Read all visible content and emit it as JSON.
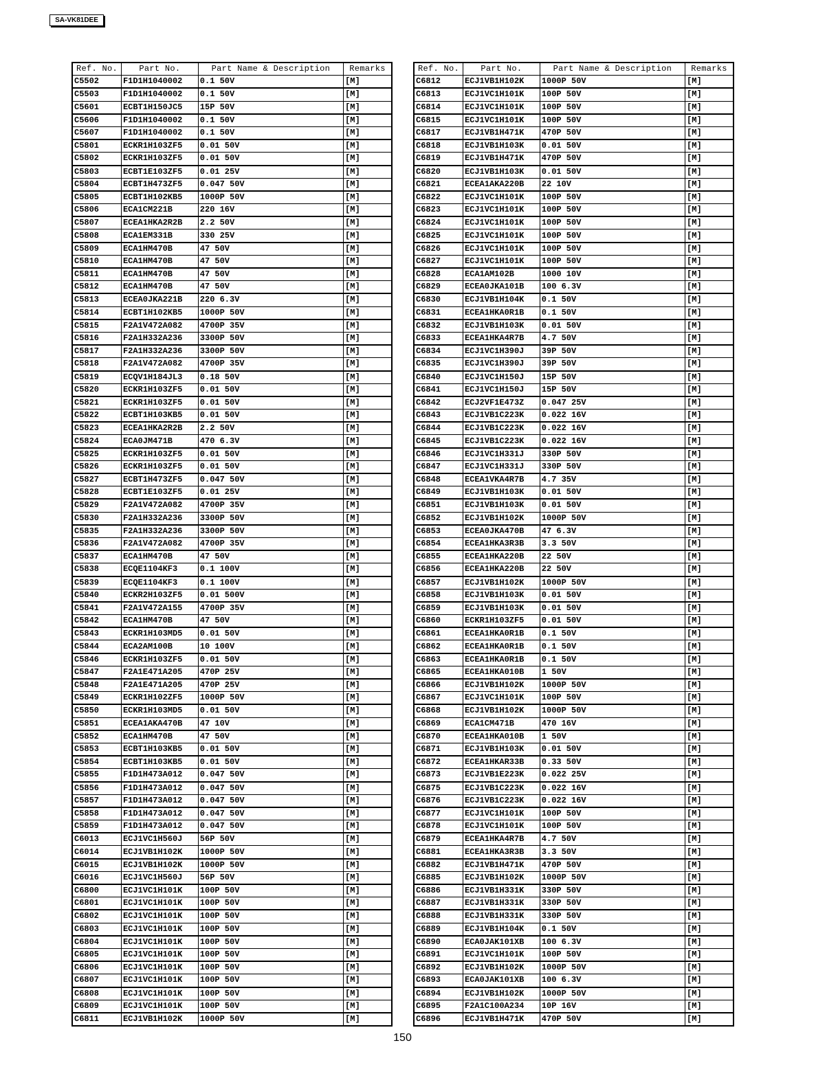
{
  "header": {
    "model": "SA-VK81DEE"
  },
  "columns": [
    "Ref. No.",
    "Part No.",
    "Part Name & Description",
    "Remarks"
  ],
  "left_table": [
    [
      "C5502",
      "F1D1H1040002",
      "0.1 50V",
      "[M]"
    ],
    [
      "C5503",
      "F1D1H1040002",
      "0.1 50V",
      "[M]"
    ],
    [
      "C5601",
      "ECBT1H150JC5",
      "15P 50V",
      "[M]"
    ],
    [
      "C5606",
      "F1D1H1040002",
      "0.1 50V",
      "[M]"
    ],
    [
      "C5607",
      "F1D1H1040002",
      "0.1 50V",
      "[M]"
    ],
    [
      "C5801",
      "ECKR1H103ZF5",
      "0.01 50V",
      "[M]"
    ],
    [
      "C5802",
      "ECKR1H103ZF5",
      "0.01 50V",
      "[M]"
    ],
    [
      "C5803",
      "ECBT1E103ZF5",
      "0.01 25V",
      "[M]"
    ],
    [
      "C5804",
      "ECBT1H473ZF5",
      "0.047 50V",
      "[M]"
    ],
    [
      "C5805",
      "ECBT1H102KB5",
      "1000P 50V",
      "[M]"
    ],
    [
      "C5806",
      "ECA1CM221B",
      "220 16V",
      "[M]"
    ],
    [
      "C5807",
      "ECEA1HKA2R2B",
      "2.2 50V",
      "[M]"
    ],
    [
      "C5808",
      "ECA1EM331B",
      "330 25V",
      "[M]"
    ],
    [
      "C5809",
      "ECA1HM470B",
      "47 50V",
      "[M]"
    ],
    [
      "C5810",
      "ECA1HM470B",
      "47 50V",
      "[M]"
    ],
    [
      "C5811",
      "ECA1HM470B",
      "47 50V",
      "[M]"
    ],
    [
      "C5812",
      "ECA1HM470B",
      "47 50V",
      "[M]"
    ],
    [
      "C5813",
      "ECEA0JKA221B",
      "220 6.3V",
      "[M]"
    ],
    [
      "C5814",
      "ECBT1H102KB5",
      "1000P 50V",
      "[M]"
    ],
    [
      "C5815",
      "F2A1V472A082",
      "4700P 35V",
      "[M]"
    ],
    [
      "C5816",
      "F2A1H332A236",
      "3300P 50V",
      "[M]"
    ],
    [
      "C5817",
      "F2A1H332A236",
      "3300P 50V",
      "[M]"
    ],
    [
      "C5818",
      "F2A1V472A082",
      "4700P 35V",
      "[M]"
    ],
    [
      "C5819",
      "ECQV1H184JL3",
      "0.18 50V",
      "[M]"
    ],
    [
      "C5820",
      "ECKR1H103ZF5",
      "0.01 50V",
      "[M]"
    ],
    [
      "C5821",
      "ECKR1H103ZF5",
      "0.01 50V",
      "[M]"
    ],
    [
      "C5822",
      "ECBT1H103KB5",
      "0.01 50V",
      "[M]"
    ],
    [
      "C5823",
      "ECEA1HKA2R2B",
      "2.2 50V",
      "[M]"
    ],
    [
      "C5824",
      "ECA0JM471B",
      "470 6.3V",
      "[M]"
    ],
    [
      "C5825",
      "ECKR1H103ZF5",
      "0.01 50V",
      "[M]"
    ],
    [
      "C5826",
      "ECKR1H103ZF5",
      "0.01 50V",
      "[M]"
    ],
    [
      "C5827",
      "ECBT1H473ZF5",
      "0.047 50V",
      "[M]"
    ],
    [
      "C5828",
      "ECBT1E103ZF5",
      "0.01 25V",
      "[M]"
    ],
    [
      "C5829",
      "F2A1V472A082",
      "4700P 35V",
      "[M]"
    ],
    [
      "C5830",
      "F2A1H332A236",
      "3300P 50V",
      "[M]"
    ],
    [
      "C5835",
      "F2A1H332A236",
      "3300P 50V",
      "[M]"
    ],
    [
      "C5836",
      "F2A1V472A082",
      "4700P 35V",
      "[M]"
    ],
    [
      "C5837",
      "ECA1HM470B",
      "47 50V",
      "[M]"
    ],
    [
      "C5838",
      "ECQE1104KF3",
      "0.1 100V",
      "[M]"
    ],
    [
      "C5839",
      "ECQE1104KF3",
      "0.1 100V",
      "[M]"
    ],
    [
      "C5840",
      "ECKR2H103ZF5",
      "0.01 500V",
      "[M]"
    ],
    [
      "C5841",
      "F2A1V472A155",
      "4700P 35V",
      "[M]"
    ],
    [
      "C5842",
      "ECA1HM470B",
      "47 50V",
      "[M]"
    ],
    [
      "C5843",
      "ECKR1H103MD5",
      "0.01 50V",
      "[M]"
    ],
    [
      "C5844",
      "ECA2AM100B",
      "10 100V",
      "[M]"
    ],
    [
      "C5846",
      "ECKR1H103ZF5",
      "0.01 50V",
      "[M]"
    ],
    [
      "C5847",
      "F2A1E471A205",
      "470P 25V",
      "[M]"
    ],
    [
      "C5848",
      "F2A1E471A205",
      "470P 25V",
      "[M]"
    ],
    [
      "C5849",
      "ECKR1H102ZF5",
      "1000P 50V",
      "[M]"
    ],
    [
      "C5850",
      "ECKR1H103MD5",
      "0.01 50V",
      "[M]"
    ],
    [
      "C5851",
      "ECEA1AKA470B",
      "47 10V",
      "[M]"
    ],
    [
      "C5852",
      "ECA1HM470B",
      "47 50V",
      "[M]"
    ],
    [
      "C5853",
      "ECBT1H103KB5",
      "0.01 50V",
      "[M]"
    ],
    [
      "C5854",
      "ECBT1H103KB5",
      "0.01 50V",
      "[M]"
    ],
    [
      "C5855",
      "F1D1H473A012",
      "0.047 50V",
      "[M]"
    ],
    [
      "C5856",
      "F1D1H473A012",
      "0.047 50V",
      "[M]"
    ],
    [
      "C5857",
      "F1D1H473A012",
      "0.047 50V",
      "[M]"
    ],
    [
      "C5858",
      "F1D1H473A012",
      "0.047 50V",
      "[M]"
    ],
    [
      "C5859",
      "F1D1H473A012",
      "0.047 50V",
      "[M]"
    ],
    [
      "C6013",
      "ECJ1VC1H560J",
      "56P 50V",
      "[M]"
    ],
    [
      "C6014",
      "ECJ1VB1H102K",
      "1000P 50V",
      "[M]"
    ],
    [
      "C6015",
      "ECJ1VB1H102K",
      "1000P 50V",
      "[M]"
    ],
    [
      "C6016",
      "ECJ1VC1H560J",
      "56P 50V",
      "[M]"
    ],
    [
      "C6800",
      "ECJ1VC1H101K",
      "100P 50V",
      "[M]"
    ],
    [
      "C6801",
      "ECJ1VC1H101K",
      "100P 50V",
      "[M]"
    ],
    [
      "C6802",
      "ECJ1VC1H101K",
      "100P 50V",
      "[M]"
    ],
    [
      "C6803",
      "ECJ1VC1H101K",
      "100P 50V",
      "[M]"
    ],
    [
      "C6804",
      "ECJ1VC1H101K",
      "100P 50V",
      "[M]"
    ],
    [
      "C6805",
      "ECJ1VC1H101K",
      "100P 50V",
      "[M]"
    ],
    [
      "C6806",
      "ECJ1VC1H101K",
      "100P 50V",
      "[M]"
    ],
    [
      "C6807",
      "ECJ1VC1H101K",
      "100P 50V",
      "[M]"
    ],
    [
      "C6808",
      "ECJ1VC1H101K",
      "100P 50V",
      "[M]"
    ],
    [
      "C6809",
      "ECJ1VC1H101K",
      "100P 50V",
      "[M]"
    ],
    [
      "C6811",
      "ECJ1VB1H102K",
      "1000P 50V",
      "[M]"
    ]
  ],
  "right_table": [
    [
      "C6812",
      "ECJ1VB1H102K",
      "1000P 50V",
      "[M]"
    ],
    [
      "C6813",
      "ECJ1VC1H101K",
      "100P 50V",
      "[M]"
    ],
    [
      "C6814",
      "ECJ1VC1H101K",
      "100P 50V",
      "[M]"
    ],
    [
      "C6815",
      "ECJ1VC1H101K",
      "100P 50V",
      "[M]"
    ],
    [
      "C6817",
      "ECJ1VB1H471K",
      "470P 50V",
      "[M]"
    ],
    [
      "C6818",
      "ECJ1VB1H103K",
      "0.01 50V",
      "[M]"
    ],
    [
      "C6819",
      "ECJ1VB1H471K",
      "470P 50V",
      "[M]"
    ],
    [
      "C6820",
      "ECJ1VB1H103K",
      "0.01 50V",
      "[M]"
    ],
    [
      "C6821",
      "ECEA1AKA220B",
      "22 10V",
      "[M]"
    ],
    [
      "C6822",
      "ECJ1VC1H101K",
      "100P 50V",
      "[M]"
    ],
    [
      "C6823",
      "ECJ1VC1H101K",
      "100P 50V",
      "[M]"
    ],
    [
      "C6824",
      "ECJ1VC1H101K",
      "100P 50V",
      "[M]"
    ],
    [
      "C6825",
      "ECJ1VC1H101K",
      "100P 50V",
      "[M]"
    ],
    [
      "C6826",
      "ECJ1VC1H101K",
      "100P 50V",
      "[M]"
    ],
    [
      "C6827",
      "ECJ1VC1H101K",
      "100P 50V",
      "[M]"
    ],
    [
      "C6828",
      "ECA1AM102B",
      "1000 10V",
      "[M]"
    ],
    [
      "C6829",
      "ECEA0JKA101B",
      "100 6.3V",
      "[M]"
    ],
    [
      "C6830",
      "ECJ1VB1H104K",
      "0.1 50V",
      "[M]"
    ],
    [
      "C6831",
      "ECEA1HKA0R1B",
      "0.1 50V",
      "[M]"
    ],
    [
      "C6832",
      "ECJ1VB1H103K",
      "0.01 50V",
      "[M]"
    ],
    [
      "C6833",
      "ECEA1HKA4R7B",
      "4.7 50V",
      "[M]"
    ],
    [
      "C6834",
      "ECJ1VC1H390J",
      "39P 50V",
      "[M]"
    ],
    [
      "C6835",
      "ECJ1VC1H390J",
      "39P 50V",
      "[M]"
    ],
    [
      "C6840",
      "ECJ1VC1H150J",
      "15P 50V",
      "[M]"
    ],
    [
      "C6841",
      "ECJ1VC1H150J",
      "15P 50V",
      "[M]"
    ],
    [
      "C6842",
      "ECJ2VF1E473Z",
      "0.047 25V",
      "[M]"
    ],
    [
      "C6843",
      "ECJ1VB1C223K",
      "0.022 16V",
      "[M]"
    ],
    [
      "C6844",
      "ECJ1VB1C223K",
      "0.022 16V",
      "[M]"
    ],
    [
      "C6845",
      "ECJ1VB1C223K",
      "0.022 16V",
      "[M]"
    ],
    [
      "C6846",
      "ECJ1VC1H331J",
      "330P 50V",
      "[M]"
    ],
    [
      "C6847",
      "ECJ1VC1H331J",
      "330P 50V",
      "[M]"
    ],
    [
      "C6848",
      "ECEA1VKA4R7B",
      "4.7 35V",
      "[M]"
    ],
    [
      "C6849",
      "ECJ1VB1H103K",
      "0.01 50V",
      "[M]"
    ],
    [
      "C6851",
      "ECJ1VB1H103K",
      "0.01 50V",
      "[M]"
    ],
    [
      "C6852",
      "ECJ1VB1H102K",
      "1000P 50V",
      "[M]"
    ],
    [
      "C6853",
      "ECEA0JKA470B",
      "47 6.3V",
      "[M]"
    ],
    [
      "C6854",
      "ECEA1HKA3R3B",
      "3.3 50V",
      "[M]"
    ],
    [
      "C6855",
      "ECEA1HKA220B",
      "22 50V",
      "[M]"
    ],
    [
      "C6856",
      "ECEA1HKA220B",
      "22 50V",
      "[M]"
    ],
    [
      "C6857",
      "ECJ1VB1H102K",
      "1000P 50V",
      "[M]"
    ],
    [
      "C6858",
      "ECJ1VB1H103K",
      "0.01 50V",
      "[M]"
    ],
    [
      "C6859",
      "ECJ1VB1H103K",
      "0.01 50V",
      "[M]"
    ],
    [
      "C6860",
      "ECKR1H103ZF5",
      "0.01 50V",
      "[M]"
    ],
    [
      "C6861",
      "ECEA1HKA0R1B",
      "0.1 50V",
      "[M]"
    ],
    [
      "C6862",
      "ECEA1HKA0R1B",
      "0.1 50V",
      "[M]"
    ],
    [
      "C6863",
      "ECEA1HKA0R1B",
      "0.1 50V",
      "[M]"
    ],
    [
      "C6865",
      "ECEA1HKA010B",
      "1 50V",
      "[M]"
    ],
    [
      "C6866",
      "ECJ1VB1H102K",
      "1000P 50V",
      "[M]"
    ],
    [
      "C6867",
      "ECJ1VC1H101K",
      "100P 50V",
      "[M]"
    ],
    [
      "C6868",
      "ECJ1VB1H102K",
      "1000P 50V",
      "[M]"
    ],
    [
      "C6869",
      "ECA1CM471B",
      "470 16V",
      "[M]"
    ],
    [
      "C6870",
      "ECEA1HKA010B",
      "1 50V",
      "[M]"
    ],
    [
      "C6871",
      "ECJ1VB1H103K",
      "0.01 50V",
      "[M]"
    ],
    [
      "C6872",
      "ECEA1HKAR33B",
      "0.33 50V",
      "[M]"
    ],
    [
      "C6873",
      "ECJ1VB1E223K",
      "0.022 25V",
      "[M]"
    ],
    [
      "C6875",
      "ECJ1VB1C223K",
      "0.022 16V",
      "[M]"
    ],
    [
      "C6876",
      "ECJ1VB1C223K",
      "0.022 16V",
      "[M]"
    ],
    [
      "C6877",
      "ECJ1VC1H101K",
      "100P 50V",
      "[M]"
    ],
    [
      "C6878",
      "ECJ1VC1H101K",
      "100P 50V",
      "[M]"
    ],
    [
      "C6879",
      "ECEA1HKA4R7B",
      "4.7 50V",
      "[M]"
    ],
    [
      "C6881",
      "ECEA1HKA3R3B",
      "3.3 50V",
      "[M]"
    ],
    [
      "C6882",
      "ECJ1VB1H471K",
      "470P 50V",
      "[M]"
    ],
    [
      "C6885",
      "ECJ1VB1H102K",
      "1000P 50V",
      "[M]"
    ],
    [
      "C6886",
      "ECJ1VB1H331K",
      "330P 50V",
      "[M]"
    ],
    [
      "C6887",
      "ECJ1VB1H331K",
      "330P 50V",
      "[M]"
    ],
    [
      "C6888",
      "ECJ1VB1H331K",
      "330P 50V",
      "[M]"
    ],
    [
      "C6889",
      "ECJ1VB1H104K",
      "0.1 50V",
      "[M]"
    ],
    [
      "C6890",
      "ECA0JAK101XB",
      "100 6.3V",
      "[M]"
    ],
    [
      "C6891",
      "ECJ1VC1H101K",
      "100P 50V",
      "[M]"
    ],
    [
      "C6892",
      "ECJ1VB1H102K",
      "1000P 50V",
      "[M]"
    ],
    [
      "C6893",
      "ECA0JAK101XB",
      "100 6.3V",
      "[M]"
    ],
    [
      "C6894",
      "ECJ1VB1H102K",
      "1000P 50V",
      "[M]"
    ],
    [
      "C6895",
      "F2A1C100A234",
      "10P 16V",
      "[M]"
    ],
    [
      "C6896",
      "ECJ1VB1H471K",
      "470P 50V",
      "[M]"
    ]
  ],
  "footer": {
    "page_number": "150"
  }
}
